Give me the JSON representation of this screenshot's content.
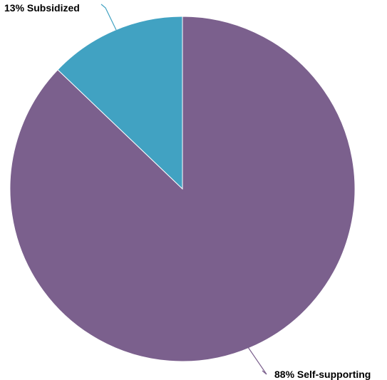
{
  "chart_data": {
    "type": "pie",
    "title": "",
    "start_angle_deg": 0,
    "direction": "counterclockwise",
    "slices": [
      {
        "label": "Subsidized",
        "value": 13,
        "display": "13% Subsidized",
        "color": "#41A2C2"
      },
      {
        "label": "Self-supporting",
        "value": 88,
        "display": "88% Self-supporting",
        "color": "#7B608D"
      }
    ],
    "legend": "none",
    "labels": "outside with leader lines"
  }
}
